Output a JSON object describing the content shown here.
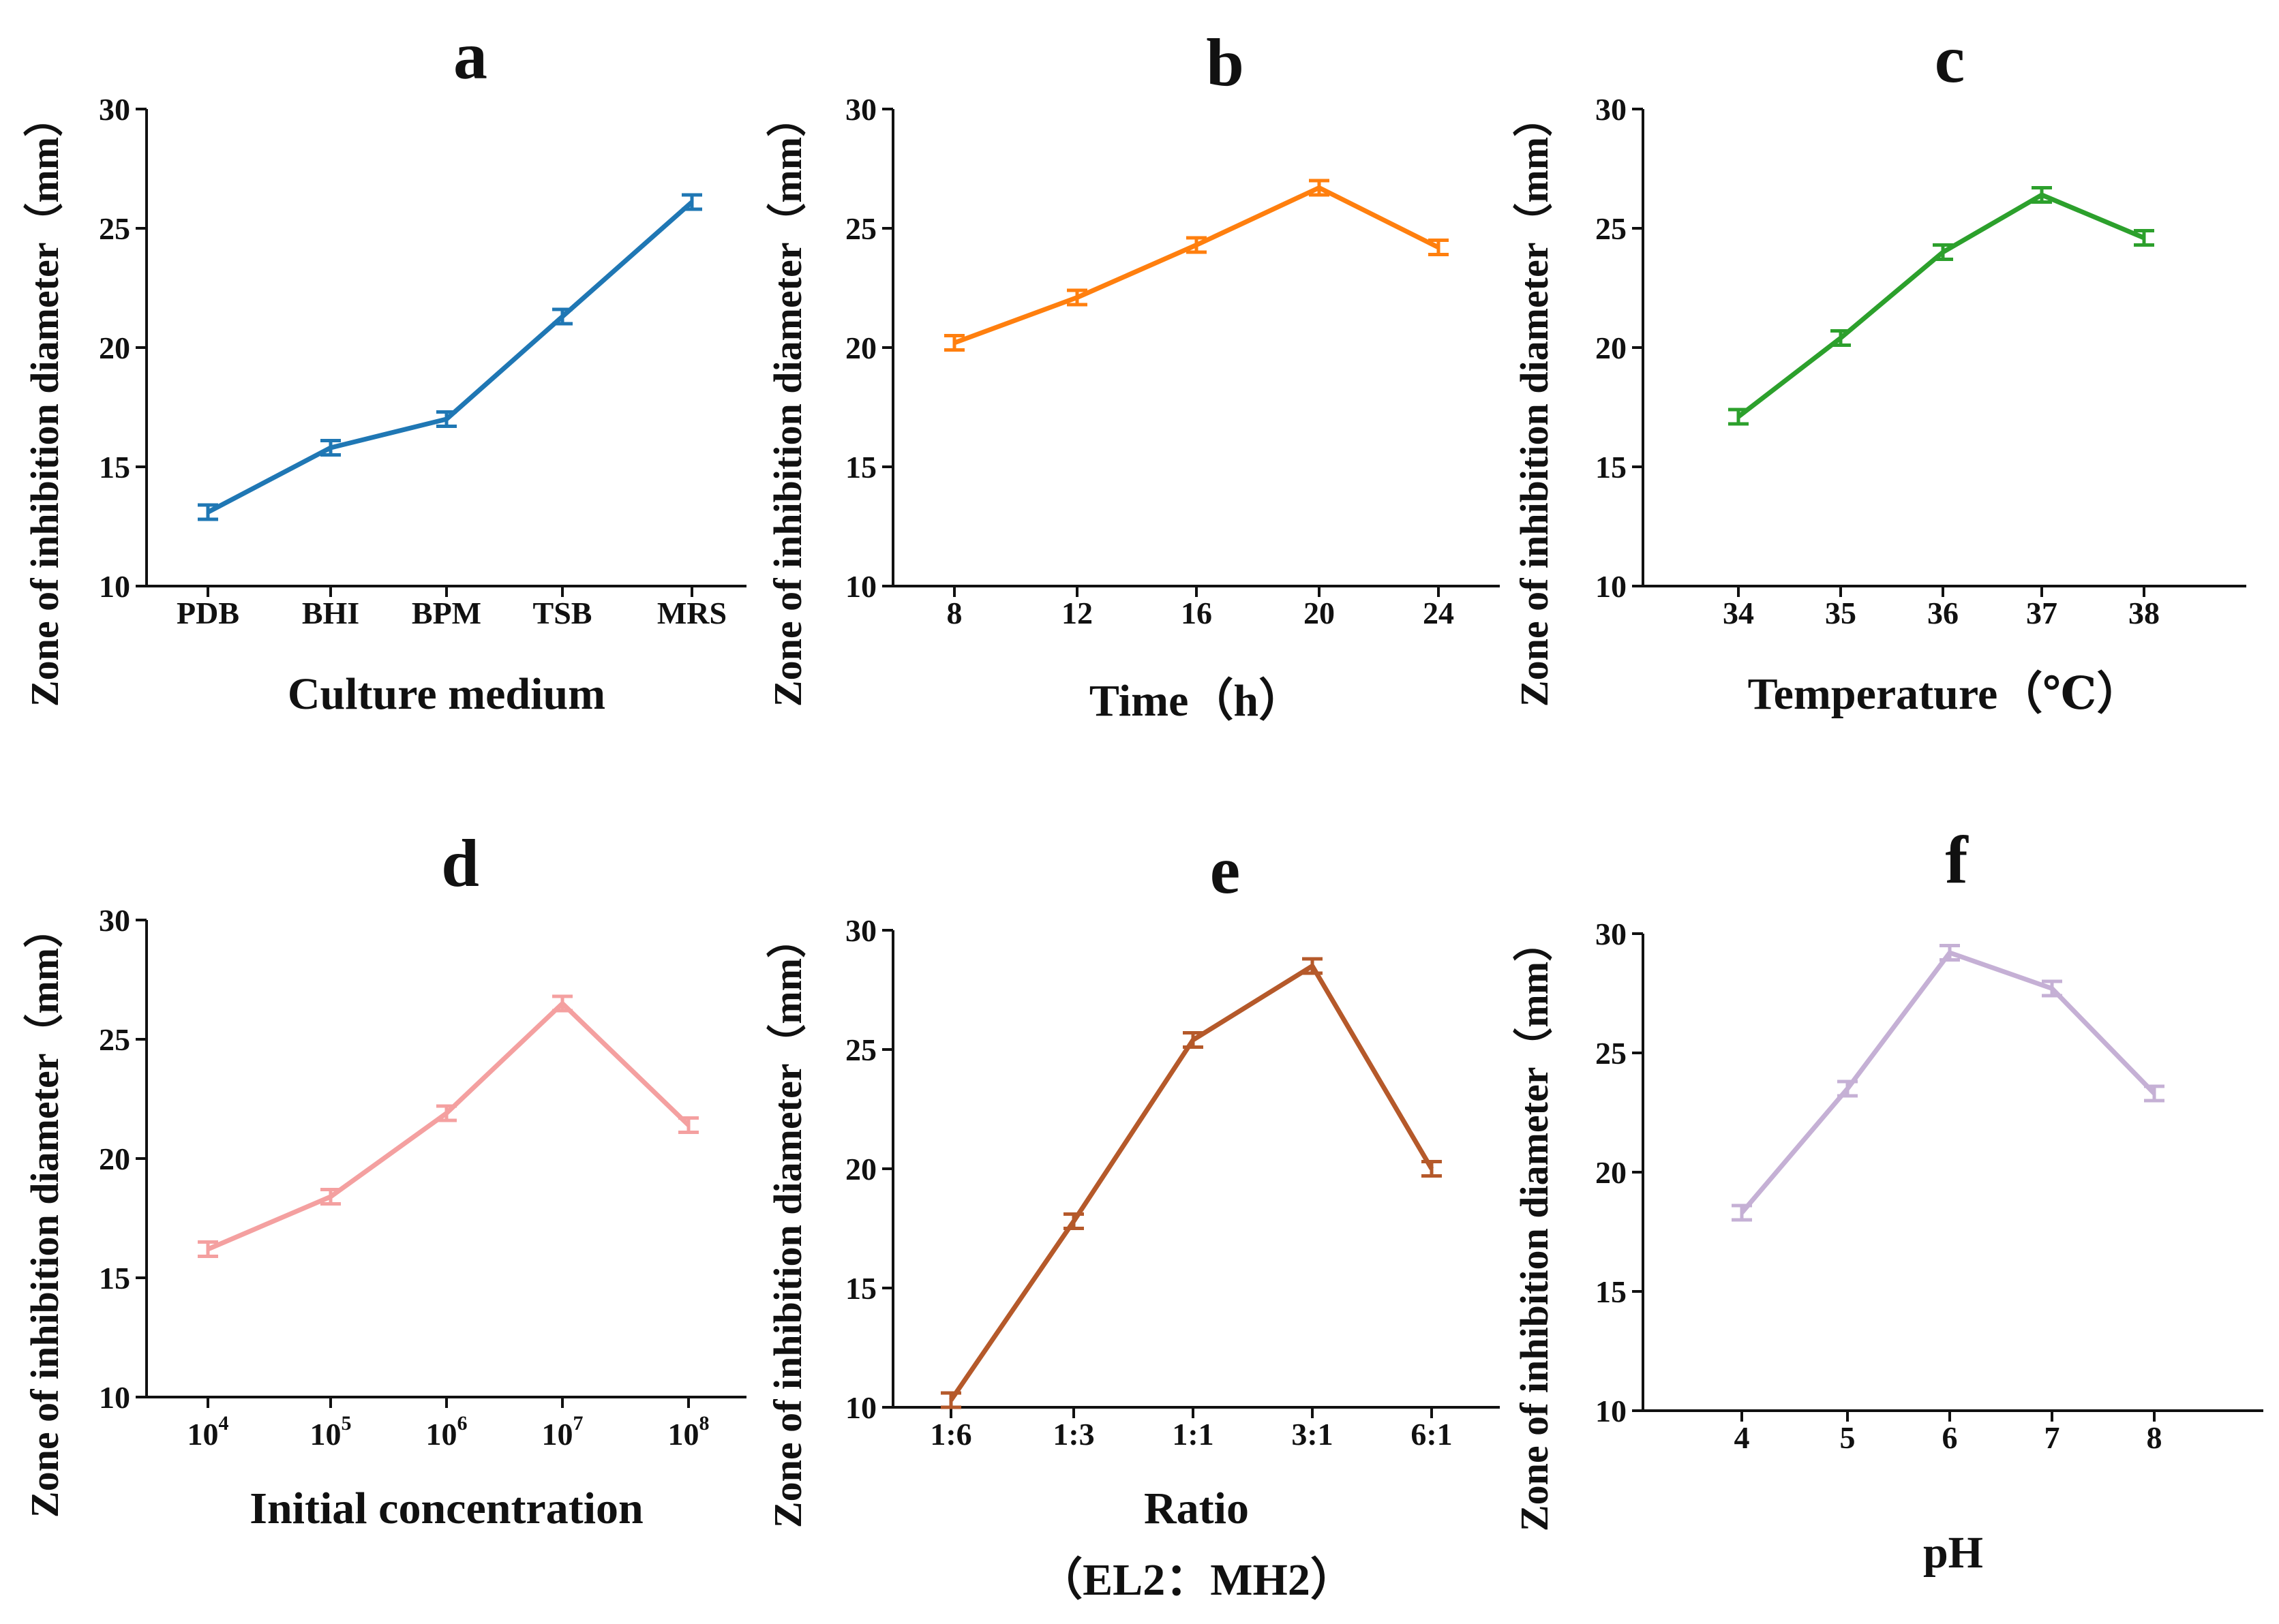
{
  "figure": {
    "ylabel": "Zone of inhibition diameter（mm）"
  },
  "chart_data": [
    {
      "panel": "a",
      "type": "line",
      "color": "#1f77b4",
      "categories": [
        "PDB",
        "BHI",
        "BPM",
        "TSB",
        "MRS"
      ],
      "values": [
        13.1,
        15.8,
        17.0,
        21.3,
        26.1
      ],
      "errors": [
        0.3,
        0.3,
        0.3,
        0.3,
        0.3
      ],
      "xlabel": [
        "Culture medium"
      ],
      "ylabel": "Zone of inhibition diameter（mm）",
      "ylim": [
        10,
        30
      ],
      "yticks": [
        10,
        15,
        20,
        25,
        30
      ]
    },
    {
      "panel": "b",
      "type": "line",
      "color": "#ff7f0e",
      "categories": [
        "8",
        "12",
        "16",
        "20",
        "24"
      ],
      "values": [
        20.2,
        22.1,
        24.3,
        26.7,
        24.2
      ],
      "errors": [
        0.3,
        0.3,
        0.3,
        0.3,
        0.3
      ],
      "xlabel": [
        "Time（h）"
      ],
      "ylabel": "Zone of inhibition diameter（mm）",
      "ylim": [
        10,
        30
      ],
      "yticks": [
        10,
        15,
        20,
        25,
        30
      ]
    },
    {
      "panel": "c",
      "type": "line",
      "color": "#2ca02c",
      "categories": [
        "34",
        "35",
        "36",
        "37",
        "38"
      ],
      "values": [
        17.1,
        20.4,
        24.0,
        26.4,
        24.6
      ],
      "errors": [
        0.3,
        0.3,
        0.3,
        0.3,
        0.3
      ],
      "xlabel": [
        "Temperature（℃）"
      ],
      "ylabel": "Zone of inhibition diameter（mm）",
      "ylim": [
        10,
        30
      ],
      "yticks": [
        10,
        15,
        20,
        25,
        30
      ]
    },
    {
      "panel": "d",
      "type": "line",
      "color": "#f4a0a0",
      "categories": [
        "10",
        "10",
        "10",
        "10",
        "10"
      ],
      "superscripts": [
        "4",
        "5",
        "6",
        "7",
        "8"
      ],
      "values": [
        16.2,
        18.4,
        21.9,
        26.5,
        21.4
      ],
      "errors": [
        0.3,
        0.3,
        0.3,
        0.3,
        0.3
      ],
      "xlabel": [
        "Initial concentration"
      ],
      "ylabel": "Zone of inhibition diameter（mm）",
      "ylim": [
        10,
        30
      ],
      "yticks": [
        10,
        15,
        20,
        25,
        30
      ]
    },
    {
      "panel": "e",
      "type": "line",
      "color": "#b5592a",
      "categories": [
        "1:6",
        "1:3",
        "1:1",
        "3:1",
        "6:1"
      ],
      "values": [
        10.3,
        17.8,
        25.4,
        28.5,
        20.0
      ],
      "errors": [
        0.3,
        0.3,
        0.3,
        0.3,
        0.3
      ],
      "xlabel": [
        "Ratio",
        "（EL2：MH2）"
      ],
      "ylabel": "Zone of inhibition diameter（mm）",
      "ylim": [
        10,
        30
      ],
      "yticks": [
        10,
        15,
        20,
        25,
        30
      ]
    },
    {
      "panel": "f",
      "type": "line",
      "color": "#c5b0d5",
      "categories": [
        "4",
        "5",
        "6",
        "7",
        "8"
      ],
      "values": [
        18.3,
        23.5,
        29.2,
        27.7,
        23.3
      ],
      "errors": [
        0.3,
        0.3,
        0.3,
        0.3,
        0.3
      ],
      "xlabel": [
        "pH"
      ],
      "ylabel": "Zone of inhibition diameter（mm）",
      "ylim": [
        10,
        30
      ],
      "yticks": [
        10,
        15,
        20,
        25,
        30
      ]
    }
  ]
}
